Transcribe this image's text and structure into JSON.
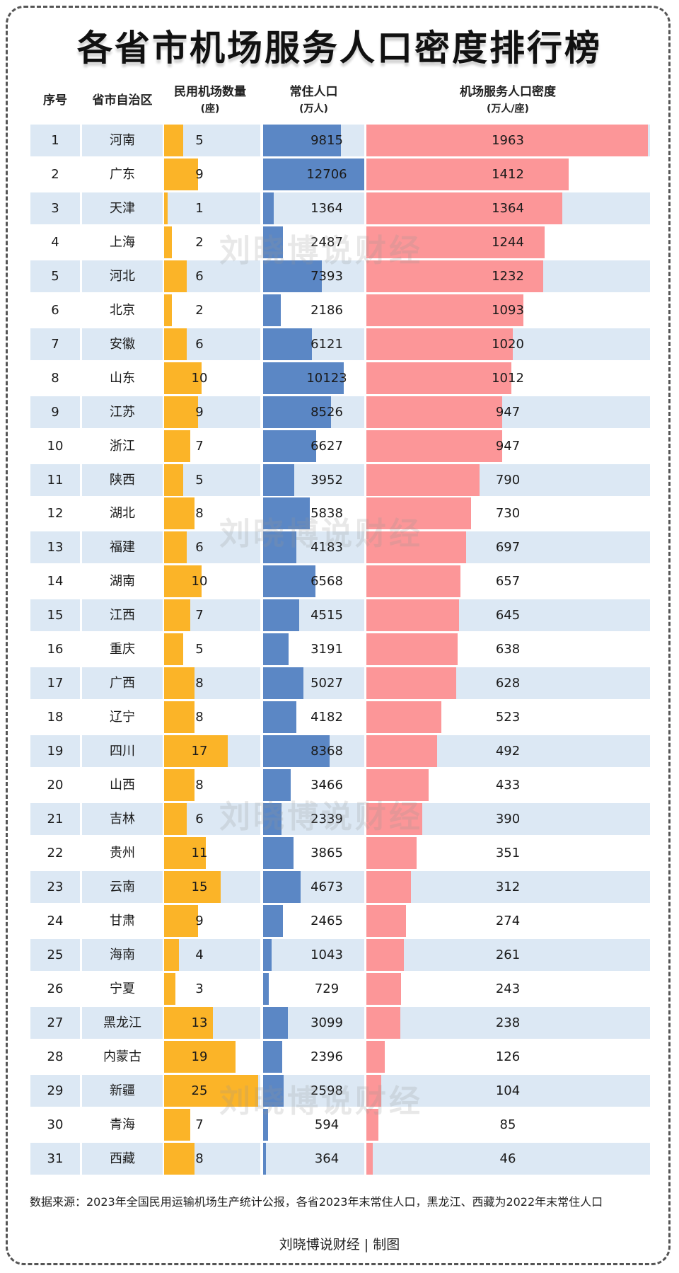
{
  "title": "各省市机场服务人口密度排行榜",
  "headers": {
    "rank": "序号",
    "province": "省市自治区",
    "airports": "民用机场数量",
    "airports_unit": "(座)",
    "population": "常住人口",
    "population_unit": "(万人)",
    "density": "机场服务人口密度",
    "density_unit": "(万人/座)"
  },
  "colors": {
    "airports_bar": "#fbb428",
    "population_bar": "#5b87c5",
    "density_bar": "#fc9698",
    "stripe": "#dce8f4"
  },
  "watermark": "刘晓博说财经",
  "footer": {
    "source": "数据来源：2023年全国民用运输机场生产统计公报，各省2023年末常住人口，黑龙江、西藏为2022年末常住人口",
    "credit": "刘晓博说财经 | 制图"
  },
  "chart_data": {
    "type": "table",
    "title": "各省市机场服务人口密度排行榜",
    "columns": [
      "序号",
      "省市自治区",
      "民用机场数量(座)",
      "常住人口(万人)",
      "机场服务人口密度(万人/座)"
    ],
    "scales": {
      "airports_max": 25,
      "population_max": 12706,
      "density_max": 1963
    },
    "rows": [
      {
        "rank": 1,
        "province": "河南",
        "airports": 5,
        "population": 9815,
        "density": 1963
      },
      {
        "rank": 2,
        "province": "广东",
        "airports": 9,
        "population": 12706,
        "density": 1412
      },
      {
        "rank": 3,
        "province": "天津",
        "airports": 1,
        "population": 1364,
        "density": 1364
      },
      {
        "rank": 4,
        "province": "上海",
        "airports": 2,
        "population": 2487,
        "density": 1244
      },
      {
        "rank": 5,
        "province": "河北",
        "airports": 6,
        "population": 7393,
        "density": 1232
      },
      {
        "rank": 6,
        "province": "北京",
        "airports": 2,
        "population": 2186,
        "density": 1093
      },
      {
        "rank": 7,
        "province": "安徽",
        "airports": 6,
        "population": 6121,
        "density": 1020
      },
      {
        "rank": 8,
        "province": "山东",
        "airports": 10,
        "population": 10123,
        "density": 1012
      },
      {
        "rank": 9,
        "province": "江苏",
        "airports": 9,
        "population": 8526,
        "density": 947
      },
      {
        "rank": 10,
        "province": "浙江",
        "airports": 7,
        "population": 6627,
        "density": 947
      },
      {
        "rank": 11,
        "province": "陕西",
        "airports": 5,
        "population": 3952,
        "density": 790
      },
      {
        "rank": 12,
        "province": "湖北",
        "airports": 8,
        "population": 5838,
        "density": 730
      },
      {
        "rank": 13,
        "province": "福建",
        "airports": 6,
        "population": 4183,
        "density": 697
      },
      {
        "rank": 14,
        "province": "湖南",
        "airports": 10,
        "population": 6568,
        "density": 657
      },
      {
        "rank": 15,
        "province": "江西",
        "airports": 7,
        "population": 4515,
        "density": 645
      },
      {
        "rank": 16,
        "province": "重庆",
        "airports": 5,
        "population": 3191,
        "density": 638
      },
      {
        "rank": 17,
        "province": "广西",
        "airports": 8,
        "population": 5027,
        "density": 628
      },
      {
        "rank": 18,
        "province": "辽宁",
        "airports": 8,
        "population": 4182,
        "density": 523
      },
      {
        "rank": 19,
        "province": "四川",
        "airports": 17,
        "population": 8368,
        "density": 492
      },
      {
        "rank": 20,
        "province": "山西",
        "airports": 8,
        "population": 3466,
        "density": 433
      },
      {
        "rank": 21,
        "province": "吉林",
        "airports": 6,
        "population": 2339,
        "density": 390
      },
      {
        "rank": 22,
        "province": "贵州",
        "airports": 11,
        "population": 3865,
        "density": 351
      },
      {
        "rank": 23,
        "province": "云南",
        "airports": 15,
        "population": 4673,
        "density": 312
      },
      {
        "rank": 24,
        "province": "甘肃",
        "airports": 9,
        "population": 2465,
        "density": 274
      },
      {
        "rank": 25,
        "province": "海南",
        "airports": 4,
        "population": 1043,
        "density": 261
      },
      {
        "rank": 26,
        "province": "宁夏",
        "airports": 3,
        "population": 729,
        "density": 243
      },
      {
        "rank": 27,
        "province": "黑龙江",
        "airports": 13,
        "population": 3099,
        "density": 238
      },
      {
        "rank": 28,
        "province": "内蒙古",
        "airports": 19,
        "population": 2396,
        "density": 126
      },
      {
        "rank": 29,
        "province": "新疆",
        "airports": 25,
        "population": 2598,
        "density": 104
      },
      {
        "rank": 30,
        "province": "青海",
        "airports": 7,
        "population": 594,
        "density": 85
      },
      {
        "rank": 31,
        "province": "西藏",
        "airports": 8,
        "population": 364,
        "density": 46
      }
    ]
  }
}
